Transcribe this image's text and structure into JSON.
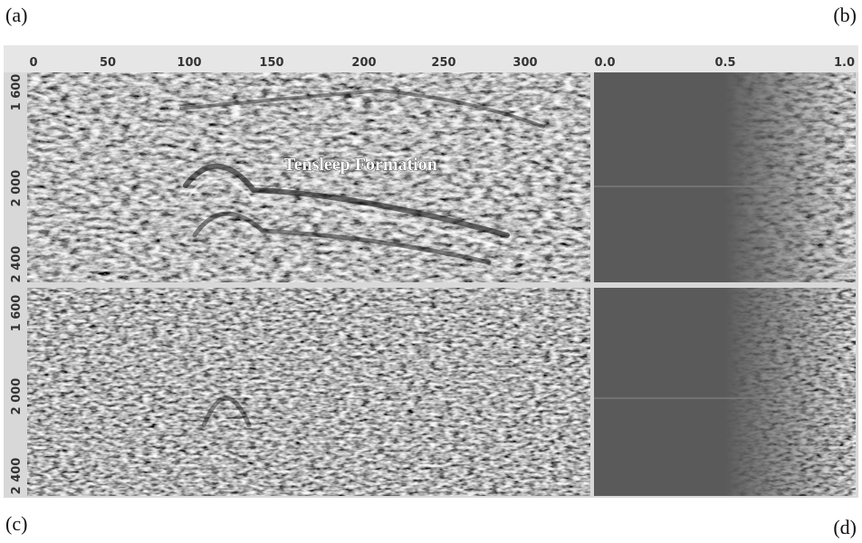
{
  "panel_labels": [
    "(a)",
    "(b)",
    "(c)",
    "(d)"
  ],
  "x_axis": {
    "left": [
      "0",
      "50",
      "100",
      "150",
      "200",
      "250",
      "300"
    ],
    "right": [
      "0.0",
      "0.5",
      "1.0"
    ]
  },
  "y_axis": {
    "top": [
      "1 600",
      "2 000",
      "2 400"
    ],
    "bottom": [
      "1 600",
      "2 000",
      "2 400"
    ]
  },
  "annotation": "Tensleep Formation"
}
